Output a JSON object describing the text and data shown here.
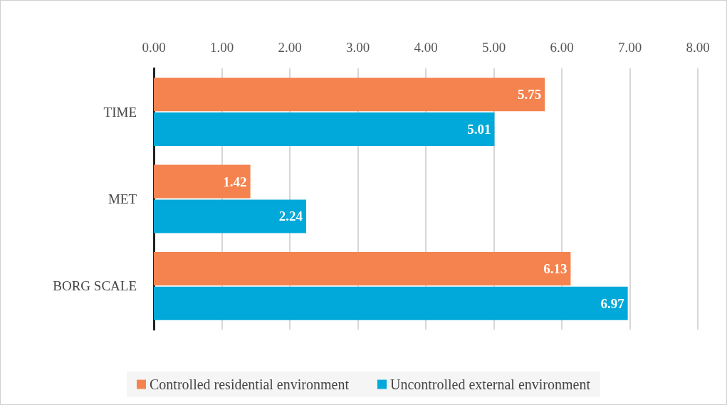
{
  "chart_data": {
    "type": "bar",
    "orientation": "horizontal",
    "categories": [
      "TIME",
      "MET",
      "BORG SCALE"
    ],
    "series": [
      {
        "name": "Controlled residential environment",
        "color": "#f5834f",
        "values": [
          5.75,
          1.42,
          6.13
        ]
      },
      {
        "name": "Uncontrolled external environment",
        "color": "#00a9d9",
        "values": [
          5.01,
          2.24,
          6.97
        ]
      }
    ],
    "xlim": [
      0,
      8
    ],
    "xticks": [
      {
        "value": 0,
        "label": "0.00"
      },
      {
        "value": 1,
        "label": "1.00"
      },
      {
        "value": 2,
        "label": "2.00"
      },
      {
        "value": 3,
        "label": "3.00"
      },
      {
        "value": 4,
        "label": "4.00"
      },
      {
        "value": 5,
        "label": "5.00"
      },
      {
        "value": 6,
        "label": "6.00"
      },
      {
        "value": 7,
        "label": "7.00"
      },
      {
        "value": 8,
        "label": "8.00"
      }
    ],
    "grid": "x",
    "legend": "bottom",
    "data_labels": true
  }
}
